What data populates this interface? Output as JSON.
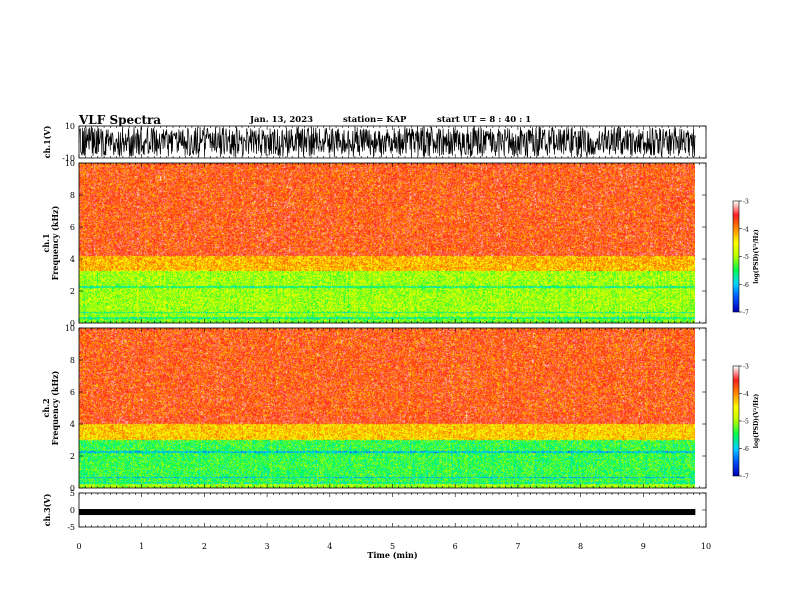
{
  "header": {
    "title": "VLF Spectra",
    "date": "Jan. 13, 2023",
    "station": "station= KAP",
    "start": "start UT =  8 : 40 : 1"
  },
  "chart_data": [
    {
      "type": "line",
      "panel": "waveform ch.1",
      "ylabel": "ch.1(V)",
      "ylim": [
        -10,
        10
      ],
      "yticks": [
        "10",
        "-10"
      ],
      "xlim": [
        0,
        10
      ],
      "x_extent": 9.83,
      "description_note": ""
    },
    {
      "type": "heatmap",
      "panel": "spectrogram ch.1",
      "ylabel": "ch.1\nFrequency (kHz)",
      "ylabel_lines": [
        "ch.1",
        "Frequency (kHz)"
      ],
      "ylim": [
        0,
        10
      ],
      "yticks": [
        "0",
        "2",
        "4",
        "6",
        "8",
        "10"
      ],
      "xlim": [
        0,
        10
      ],
      "x_extent": 9.83,
      "bands_khz": [
        {
          "from": 0,
          "to": 0.3,
          "level": -5.2
        },
        {
          "from": 0.3,
          "to": 3.3,
          "level": -5.0
        },
        {
          "from": 3.3,
          "to": 4.2,
          "level": -4.2
        },
        {
          "from": 4.2,
          "to": 10,
          "level": -3.6
        }
      ],
      "colorbar": {
        "label": "log(PSD)(V²/Hz)",
        "ticks": [
          "-3",
          "-4",
          "-5",
          "-6",
          "-7"
        ],
        "range": [
          -7,
          -3
        ]
      }
    },
    {
      "type": "heatmap",
      "panel": "spectrogram ch.2",
      "ylabel": "ch.2\nFrequency (kHz)",
      "ylabel_lines": [
        "ch.2",
        "Frequency (kHz)"
      ],
      "ylim": [
        0,
        10
      ],
      "yticks": [
        "0",
        "2",
        "4",
        "6",
        "8",
        "10"
      ],
      "xlim": [
        0,
        10
      ],
      "x_extent": 9.83,
      "bands_khz": [
        {
          "from": 0,
          "to": 0.4,
          "level": -5.0
        },
        {
          "from": 0.4,
          "to": 3.0,
          "level": -5.4
        },
        {
          "from": 3.0,
          "to": 4.0,
          "level": -4.3
        },
        {
          "from": 4.0,
          "to": 10,
          "level": -3.6
        }
      ],
      "colorbar": {
        "label": "log(PSD)(V²/Hz)",
        "ticks": [
          "-3",
          "-4",
          "-5",
          "-6",
          "-7"
        ],
        "range": [
          -7,
          -3
        ]
      }
    },
    {
      "type": "line",
      "panel": "waveform ch.3",
      "ylabel": "ch.3(V)",
      "ylim": [
        -5,
        5
      ],
      "yticks": [
        "5",
        "0",
        "-5"
      ],
      "xlim": [
        0,
        10
      ],
      "x_extent": 9.83,
      "level": -0.6
    }
  ],
  "xaxis": {
    "label": "Time (min)",
    "ticks": [
      "0",
      "1",
      "2",
      "3",
      "4",
      "5",
      "6",
      "7",
      "8",
      "9",
      "10"
    ]
  },
  "colors": {
    "waveform": "#000000",
    "scale": [
      "#0000b4",
      "#0050ff",
      "#00d2ff",
      "#00ff50",
      "#b4ff00",
      "#ffff00",
      "#ff8c00",
      "#ff1e1e",
      "#ffffff"
    ]
  }
}
